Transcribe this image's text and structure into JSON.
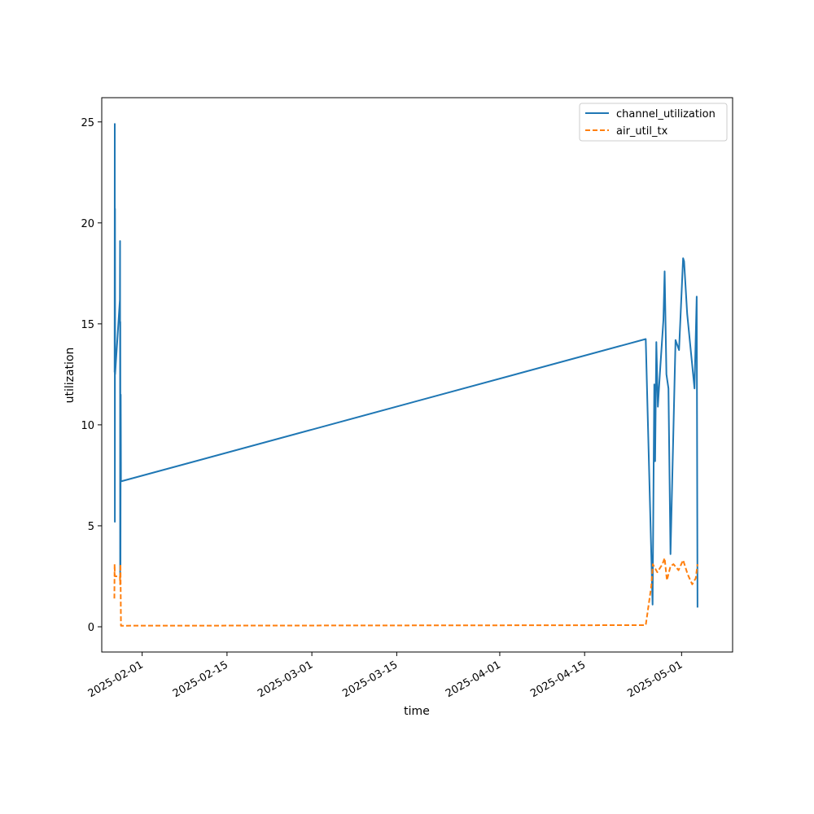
{
  "chart_data": {
    "type": "line",
    "xlabel": "time",
    "ylabel": "utilization",
    "x_axis": "date",
    "xlim": [
      "2025-01-25T08:00",
      "2025-05-09T10:00"
    ],
    "ylim": [
      -1.25,
      26.2
    ],
    "x_ticks": [
      "2025-02-01",
      "2025-02-15",
      "2025-03-01",
      "2025-03-15",
      "2025-04-01",
      "2025-04-15",
      "2025-05-01"
    ],
    "y_ticks": [
      0,
      5,
      10,
      15,
      20,
      25
    ],
    "legend": {
      "position": "top-right"
    },
    "grid": false,
    "series": [
      {
        "name": "channel_utilization",
        "color": "#1f77b4",
        "dash": "solid",
        "points": [
          [
            "2025-01-27T11:00",
            12.6
          ],
          [
            "2025-01-27T11:30",
            24.9
          ],
          [
            "2025-01-27T12:00",
            5.2
          ],
          [
            "2025-01-27T12:30",
            20.7
          ],
          [
            "2025-01-27T13:00",
            12.5
          ],
          [
            "2025-01-28T08:00",
            16.2
          ],
          [
            "2025-01-28T08:30",
            19.1
          ],
          [
            "2025-01-28T09:00",
            2.4
          ],
          [
            "2025-01-28T09:30",
            15.1
          ],
          [
            "2025-01-28T10:00",
            3.0
          ],
          [
            "2025-01-28T11:00",
            11.5
          ],
          [
            "2025-01-28T12:00",
            7.2
          ],
          [
            "2025-04-25T02:00",
            14.25
          ],
          [
            "2025-04-26T05:00",
            1.1
          ],
          [
            "2025-04-26T12:00",
            12.0
          ],
          [
            "2025-04-26T15:00",
            8.2
          ],
          [
            "2025-04-26T20:00",
            14.1
          ],
          [
            "2025-04-27T02:00",
            10.9
          ],
          [
            "2025-04-27T10:00",
            12.5
          ],
          [
            "2025-04-28T00:00",
            15.2
          ],
          [
            "2025-04-28T05:00",
            17.6
          ],
          [
            "2025-04-28T12:00",
            12.5
          ],
          [
            "2025-04-28T20:00",
            11.8
          ],
          [
            "2025-04-29T04:00",
            3.6
          ],
          [
            "2025-04-30T00:00",
            14.2
          ],
          [
            "2025-04-30T14:00",
            13.7
          ],
          [
            "2025-05-01T06:00",
            18.25
          ],
          [
            "2025-05-01T10:00",
            18.1
          ],
          [
            "2025-05-01T22:00",
            15.5
          ],
          [
            "2025-05-03T03:00",
            11.8
          ],
          [
            "2025-05-03T12:00",
            16.35
          ],
          [
            "2025-05-03T15:00",
            0.95
          ]
        ]
      },
      {
        "name": "air_util_tx",
        "color": "#ff7f0e",
        "dash": "dashed",
        "points": [
          [
            "2025-01-27T10:00",
            1.4
          ],
          [
            "2025-01-27T11:00",
            3.1
          ],
          [
            "2025-01-27T12:00",
            2.5
          ],
          [
            "2025-01-28T08:00",
            2.5
          ],
          [
            "2025-01-28T09:00",
            2.1
          ],
          [
            "2025-01-28T10:00",
            3.1
          ],
          [
            "2025-01-28T12:00",
            0.05
          ],
          [
            "2025-04-25T02:00",
            0.08
          ],
          [
            "2025-04-26T00:00",
            2.0
          ],
          [
            "2025-04-26T06:00",
            3.1
          ],
          [
            "2025-04-27T00:00",
            2.7
          ],
          [
            "2025-04-27T20:00",
            3.1
          ],
          [
            "2025-04-28T05:00",
            3.4
          ],
          [
            "2025-04-28T14:00",
            2.3
          ],
          [
            "2025-04-29T04:00",
            3.0
          ],
          [
            "2025-04-29T16:00",
            3.1
          ],
          [
            "2025-04-30T12:00",
            2.8
          ],
          [
            "2025-05-01T06:00",
            3.3
          ],
          [
            "2025-05-02T00:00",
            2.6
          ],
          [
            "2025-05-02T18:00",
            2.1
          ],
          [
            "2025-05-03T08:00",
            2.4
          ],
          [
            "2025-05-03T15:00",
            3.1
          ]
        ]
      }
    ]
  }
}
